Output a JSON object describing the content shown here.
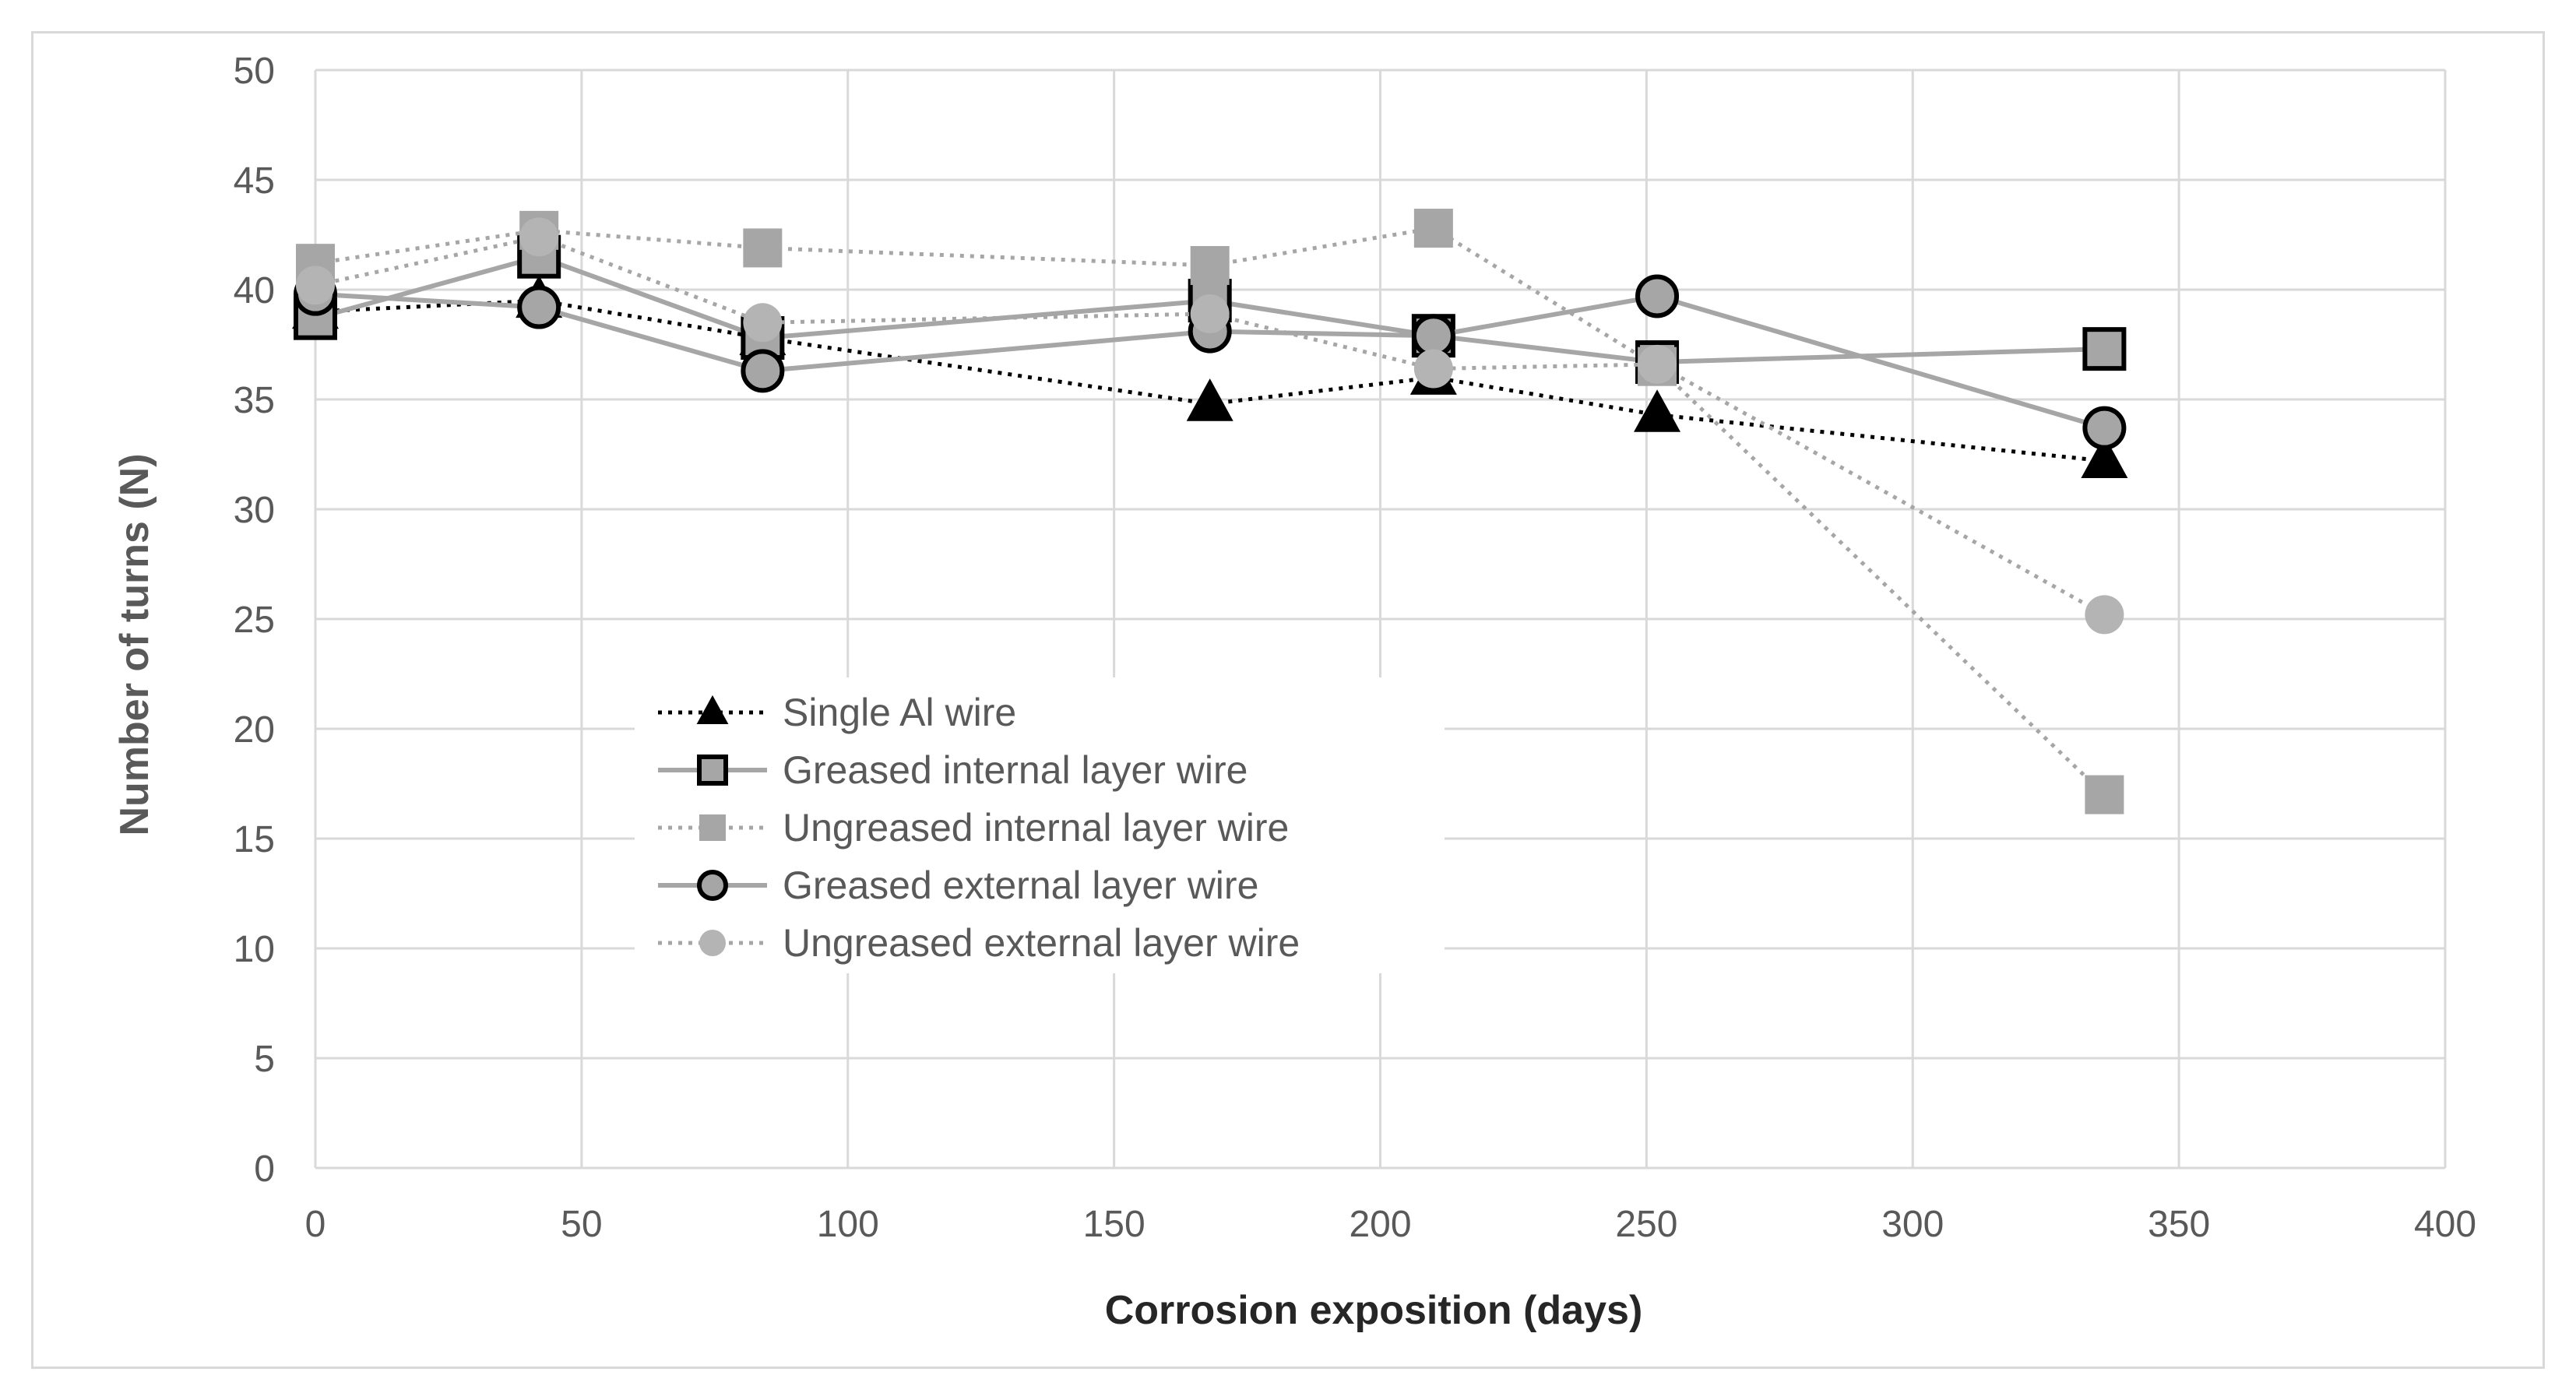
{
  "chart_data": {
    "type": "line",
    "title": "",
    "xlabel": "Corrosion exposition (days)",
    "ylabel": "Number of turns (N)",
    "xlim": [
      0,
      400
    ],
    "ylim": [
      0,
      50
    ],
    "xticks": [
      0,
      50,
      100,
      150,
      200,
      250,
      300,
      350,
      400
    ],
    "yticks": [
      0,
      5,
      10,
      15,
      20,
      25,
      30,
      35,
      40,
      45,
      50
    ],
    "grid": true,
    "legend_position": "center-left",
    "colors": {
      "text": "#595959",
      "grid": "#d9d9d9",
      "black": "#000000",
      "gray_line": "#a6a6a6",
      "gray_fill": "#a6a6a6",
      "light_fill": "#b4b4b4"
    },
    "series": [
      {
        "name": "Single Al wire",
        "line_style": "dotted",
        "line_color": "#000000",
        "marker": "triangle",
        "marker_fill": "#000000",
        "marker_stroke": "#000000",
        "points": [
          [
            0,
            39
          ],
          [
            42,
            39.5
          ],
          [
            84,
            37.8
          ],
          [
            168,
            34.8
          ],
          [
            210,
            36
          ],
          [
            252,
            34.3
          ],
          [
            336,
            32.2
          ]
        ]
      },
      {
        "name": "Greased  internal layer wire",
        "line_style": "solid",
        "line_color": "#a6a6a6",
        "marker": "square",
        "marker_fill": "#a6a6a6",
        "marker_stroke": "#000000",
        "points": [
          [
            0,
            38.7
          ],
          [
            42,
            41.5
          ],
          [
            84,
            37.8
          ],
          [
            168,
            39.5
          ],
          [
            210,
            37.9
          ],
          [
            252,
            36.7
          ],
          [
            336,
            37.3
          ]
        ]
      },
      {
        "name": "Ungreased  internal layer wire",
        "line_style": "dotted",
        "line_color": "#a6a6a6",
        "marker": "square",
        "marker_fill": "#a6a6a6",
        "marker_stroke": "none",
        "points": [
          [
            0,
            41.2
          ],
          [
            42,
            42.7
          ],
          [
            84,
            41.9
          ],
          [
            168,
            41.1
          ],
          [
            210,
            42.8
          ],
          [
            252,
            36.5
          ],
          [
            336,
            17
          ]
        ]
      },
      {
        "name": "Greased external layer wire",
        "line_style": "solid",
        "line_color": "#a6a6a6",
        "marker": "circle",
        "marker_fill": "#a6a6a6",
        "marker_stroke": "#000000",
        "points": [
          [
            0,
            39.8
          ],
          [
            42,
            39.2
          ],
          [
            84,
            36.3
          ],
          [
            168,
            38.1
          ],
          [
            210,
            37.9
          ],
          [
            252,
            39.7
          ],
          [
            336,
            33.7
          ]
        ]
      },
      {
        "name": "Ungreased external layer wire",
        "line_style": "dotted",
        "line_color": "#a6a6a6",
        "marker": "circle",
        "marker_fill": "#b4b4b4",
        "marker_stroke": "none",
        "points": [
          [
            0,
            40.2
          ],
          [
            42,
            42.4
          ],
          [
            84,
            38.5
          ],
          [
            168,
            38.9
          ],
          [
            210,
            36.4
          ],
          [
            252,
            36.6
          ],
          [
            336,
            25.2
          ]
        ]
      }
    ]
  }
}
